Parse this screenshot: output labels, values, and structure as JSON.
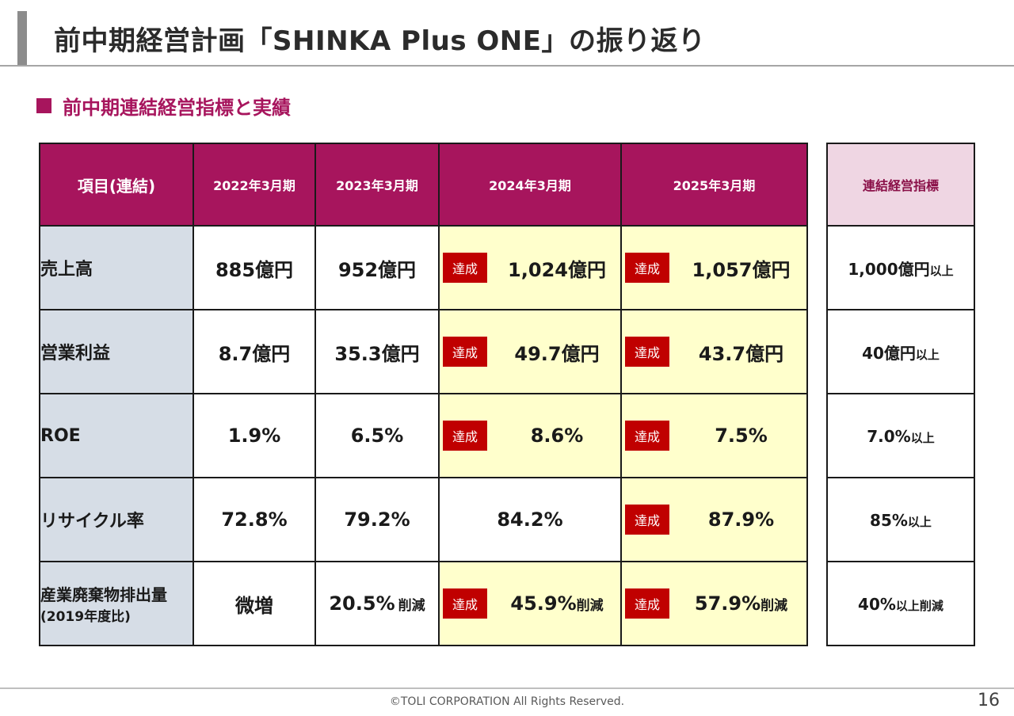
{
  "header": {
    "title": "前中期経営計画「SHINKA Plus ONE」の振り返り",
    "subtitle": "前中期連結経営指標と実績"
  },
  "badge_label": "達成",
  "table": {
    "columns": [
      "項目(連結)",
      "2022年3月期",
      "2023年3月期",
      "2024年3月期",
      "2025年3月期"
    ],
    "target_header": "連結経営指標",
    "rows": [
      {
        "label": "売上高",
        "values": [
          "885億円",
          "952億円",
          "1,024億円",
          "1,057億円"
        ],
        "target": "1,000億円",
        "target_suffix": "以上"
      },
      {
        "label": "営業利益",
        "values": [
          "8.7億円",
          "35.3億円",
          "49.7億円",
          "43.7億円"
        ],
        "target": "40億円",
        "target_suffix": "以上"
      },
      {
        "label": "ROE",
        "values": [
          "1.9%",
          "6.5%",
          "8.6%",
          "7.5%"
        ],
        "target": "7.0%",
        "target_suffix": "以上"
      },
      {
        "label": "リサイクル率",
        "values": [
          "72.8%",
          "79.2%",
          "84.2%",
          "87.9%"
        ],
        "target": "85%",
        "target_suffix": "以上"
      },
      {
        "label": "産業廃棄物排出量",
        "label_sub": "(2019年度比)",
        "values": [
          "微増",
          "20.5%",
          "45.9%",
          "57.9%"
        ],
        "value_suffix": "削減",
        "target": "40%",
        "target_suffix": "以上削減"
      }
    ]
  },
  "colors": {
    "accent": "#a7155d",
    "badge": "#c00000",
    "highlight": "#ffffcc",
    "label_bg": "#d6dde6"
  },
  "footer": {
    "copyright": "©TOLI CORPORATION All Rights Reserved.",
    "page": "16"
  }
}
